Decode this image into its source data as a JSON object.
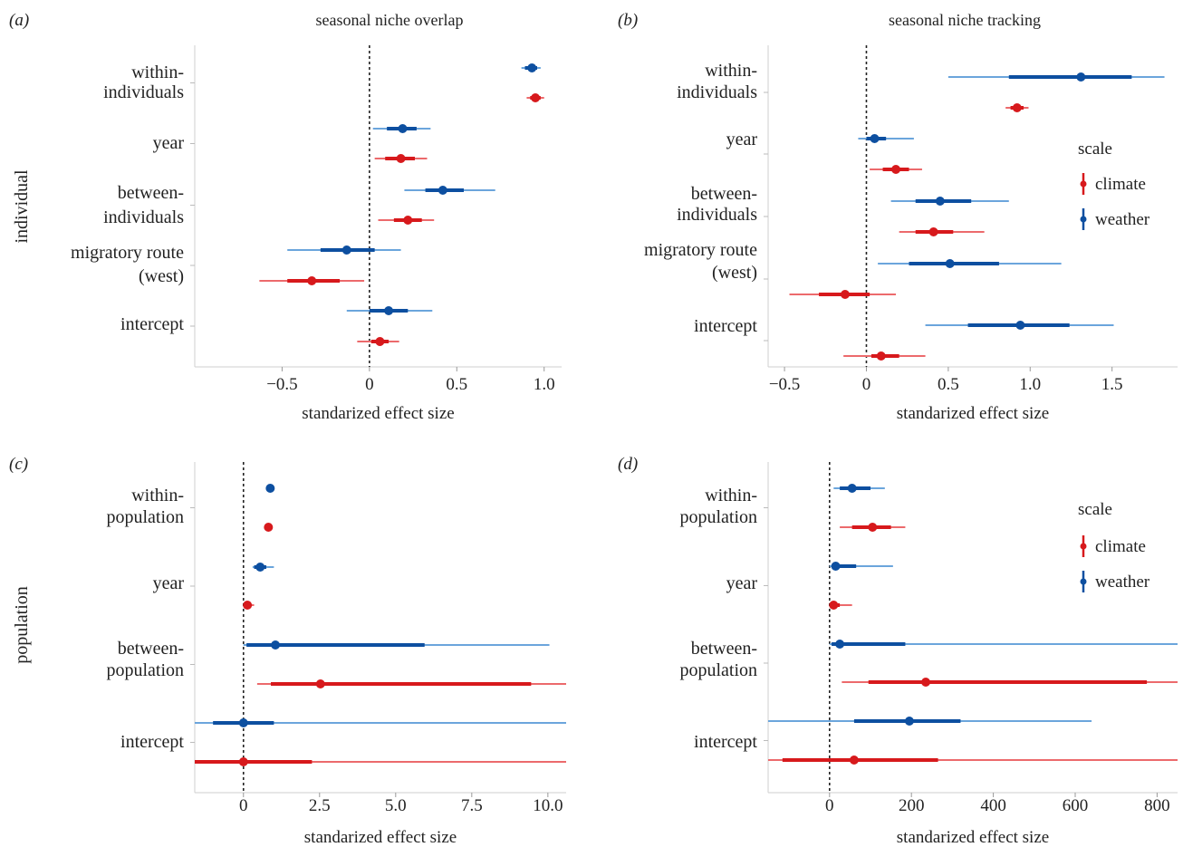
{
  "colors": {
    "climate": "#d7191c",
    "weather": "#0d4fa0",
    "climate_light": "#ec6a6c",
    "weather_light": "#6ba5dc"
  },
  "row_labels": {
    "top": "individual",
    "bottom": "population"
  },
  "legend": {
    "title": "scale",
    "items": [
      "climate",
      "weather"
    ]
  },
  "chart_data": [
    {
      "type": "forest",
      "panel_label": "(a)",
      "title": "seasonal niche overlap",
      "xlabel": "standarized effect size",
      "xlim": [
        -1.0,
        1.1
      ],
      "xticks": [
        -0.5,
        0,
        0.5,
        1.0
      ],
      "xtick_labels": [
        "−0.5",
        "0",
        "0.5",
        "1.0"
      ],
      "categories": [
        {
          "label": [
            "within-",
            "individuals"
          ]
        },
        {
          "label": [
            "year"
          ]
        },
        {
          "label": [
            "between-",
            "individuals"
          ]
        },
        {
          "label": [
            "migratory route",
            "(west)"
          ]
        },
        {
          "label": [
            "intercept"
          ]
        }
      ],
      "series": [
        {
          "name": "weather",
          "values": [
            0.93,
            0.19,
            0.42,
            -0.13,
            0.11
          ],
          "inner": [
            [
              0.89,
              0.96
            ],
            [
              0.1,
              0.27
            ],
            [
              0.32,
              0.54
            ],
            [
              -0.28,
              0.03
            ],
            [
              0.0,
              0.22
            ]
          ],
          "outer": [
            [
              0.87,
              0.98
            ],
            [
              0.02,
              0.35
            ],
            [
              0.2,
              0.72
            ],
            [
              -0.47,
              0.18
            ],
            [
              -0.13,
              0.36
            ]
          ]
        },
        {
          "name": "climate",
          "values": [
            0.95,
            0.18,
            0.22,
            -0.33,
            0.06
          ],
          "inner": [
            [
              0.92,
              0.98
            ],
            [
              0.09,
              0.26
            ],
            [
              0.14,
              0.3
            ],
            [
              -0.47,
              -0.17
            ],
            [
              0.01,
              0.11
            ]
          ],
          "outer": [
            [
              0.9,
              1.0
            ],
            [
              0.03,
              0.33
            ],
            [
              0.05,
              0.37
            ],
            [
              -0.63,
              -0.03
            ],
            [
              -0.07,
              0.17
            ]
          ]
        }
      ],
      "legend": false
    },
    {
      "type": "forest",
      "panel_label": "(b)",
      "title": "seasonal niche tracking",
      "xlabel": "standarized effect size",
      "xlim": [
        -0.6,
        1.9
      ],
      "xticks": [
        -0.5,
        0,
        0.5,
        1.0,
        1.5
      ],
      "xtick_labels": [
        "−0.5",
        "0",
        "0.5",
        "1.0",
        "1.5"
      ],
      "categories": [
        {
          "label": [
            "within-",
            "individuals"
          ]
        },
        {
          "label": [
            "year"
          ]
        },
        {
          "label": [
            "between-",
            "individuals"
          ]
        },
        {
          "label": [
            "migratory route",
            "(west)"
          ]
        },
        {
          "label": [
            "intercept"
          ]
        }
      ],
      "series": [
        {
          "name": "weather",
          "values": [
            1.31,
            0.05,
            0.45,
            0.51,
            0.94
          ],
          "inner": [
            [
              0.87,
              1.62
            ],
            [
              0.0,
              0.12
            ],
            [
              0.3,
              0.64
            ],
            [
              0.26,
              0.81
            ],
            [
              0.62,
              1.24
            ]
          ],
          "outer": [
            [
              0.5,
              1.82
            ],
            [
              -0.05,
              0.29
            ],
            [
              0.15,
              0.87
            ],
            [
              0.07,
              1.19
            ],
            [
              0.36,
              1.51
            ]
          ]
        },
        {
          "name": "climate",
          "values": [
            0.92,
            0.18,
            0.41,
            -0.13,
            0.09
          ],
          "inner": [
            [
              0.88,
              0.96
            ],
            [
              0.1,
              0.26
            ],
            [
              0.3,
              0.53
            ],
            [
              -0.29,
              0.02
            ],
            [
              0.03,
              0.2
            ]
          ],
          "outer": [
            [
              0.85,
              0.99
            ],
            [
              0.02,
              0.34
            ],
            [
              0.2,
              0.72
            ],
            [
              -0.47,
              0.18
            ],
            [
              -0.14,
              0.36
            ]
          ]
        }
      ],
      "legend": true
    },
    {
      "type": "forest",
      "panel_label": "(c)",
      "title": "",
      "xlabel": "standarized effect size",
      "xlim": [
        -1.6,
        10.6
      ],
      "xticks": [
        0,
        2.5,
        5.0,
        7.5,
        10.0
      ],
      "xtick_labels": [
        "0",
        "2.5",
        "5.0",
        "7.5",
        "10.0"
      ],
      "categories": [
        {
          "label": [
            "within-",
            "population"
          ]
        },
        {
          "label": [
            "year"
          ]
        },
        {
          "label": [
            "between-",
            "population"
          ]
        },
        {
          "label": [
            "intercept"
          ]
        }
      ],
      "series": [
        {
          "name": "weather",
          "values": [
            0.88,
            0.55,
            1.05,
            0.0
          ],
          "inner": [
            [
              0.85,
              0.91
            ],
            [
              0.35,
              0.75
            ],
            [
              0.1,
              5.95
            ],
            [
              -1.0,
              1.0
            ]
          ],
          "outer": [
            [
              0.83,
              0.93
            ],
            [
              0.3,
              1.0
            ],
            [
              0.0,
              10.05
            ],
            [
              -1.6,
              10.6
            ]
          ]
        },
        {
          "name": "climate",
          "values": [
            0.82,
            0.13,
            2.53,
            0.0
          ],
          "inner": [
            [
              0.79,
              0.85
            ],
            [
              0.05,
              0.22
            ],
            [
              0.9,
              9.45
            ],
            [
              -1.6,
              2.25
            ]
          ],
          "outer": [
            [
              0.77,
              0.87
            ],
            [
              0.0,
              0.35
            ],
            [
              0.45,
              10.6
            ],
            [
              -1.6,
              10.6
            ]
          ]
        }
      ],
      "legend": false
    },
    {
      "type": "forest",
      "panel_label": "(d)",
      "title": "",
      "xlabel": "standarized effect size",
      "xlim": [
        -150,
        850
      ],
      "xticks": [
        0,
        200,
        400,
        600,
        800
      ],
      "xtick_labels": [
        "0",
        "200",
        "400",
        "600",
        "800"
      ],
      "categories": [
        {
          "label": [
            "within-",
            "population"
          ]
        },
        {
          "label": [
            "year"
          ]
        },
        {
          "label": [
            "between-",
            "population"
          ]
        },
        {
          "label": [
            "intercept"
          ]
        }
      ],
      "series": [
        {
          "name": "weather",
          "values": [
            55,
            15,
            25,
            195
          ],
          "inner": [
            [
              25,
              100
            ],
            [
              5,
              65
            ],
            [
              5,
              185
            ],
            [
              60,
              320
            ]
          ],
          "outer": [
            [
              10,
              135
            ],
            [
              0,
              155
            ],
            [
              0,
              850
            ],
            [
              -150,
              640
            ]
          ]
        },
        {
          "name": "climate",
          "values": [
            105,
            10,
            235,
            60
          ],
          "inner": [
            [
              55,
              150
            ],
            [
              0,
              25
            ],
            [
              95,
              775
            ],
            [
              -115,
              265
            ]
          ],
          "outer": [
            [
              25,
              185
            ],
            [
              0,
              55
            ],
            [
              30,
              850
            ],
            [
              -150,
              850
            ]
          ]
        }
      ],
      "legend": true
    }
  ]
}
